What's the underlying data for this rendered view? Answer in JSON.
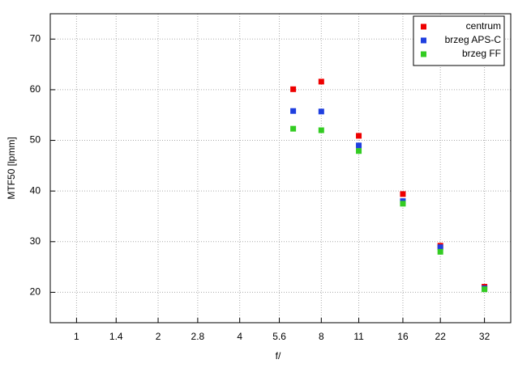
{
  "chart_data": {
    "type": "scatter",
    "xlabel": "f/",
    "ylabel": "MTF50 [lpmm]",
    "xscale": "log",
    "xlim": [
      0.8,
      40
    ],
    "xticks": [
      1,
      1.4,
      2,
      2.8,
      4,
      5.6,
      8,
      11,
      16,
      22,
      32
    ],
    "ylim": [
      14,
      75
    ],
    "yticks": [
      20,
      30,
      40,
      50,
      60,
      70
    ],
    "grid": true,
    "legend": "upper right",
    "x": [
      6.3,
      8,
      11,
      16,
      22,
      32
    ],
    "series": [
      {
        "name": "centrum",
        "color": "#ee0000",
        "values": [
          60.1,
          61.6,
          50.9,
          39.4,
          29.2,
          21.1
        ]
      },
      {
        "name": "brzeg APS-C",
        "color": "#1f3fdf",
        "values": [
          55.8,
          55.7,
          49.0,
          38.0,
          28.9,
          20.8
        ]
      },
      {
        "name": "brzeg FF",
        "color": "#33cc22",
        "values": [
          52.3,
          52.0,
          47.9,
          37.5,
          28.0,
          20.6
        ]
      }
    ]
  }
}
